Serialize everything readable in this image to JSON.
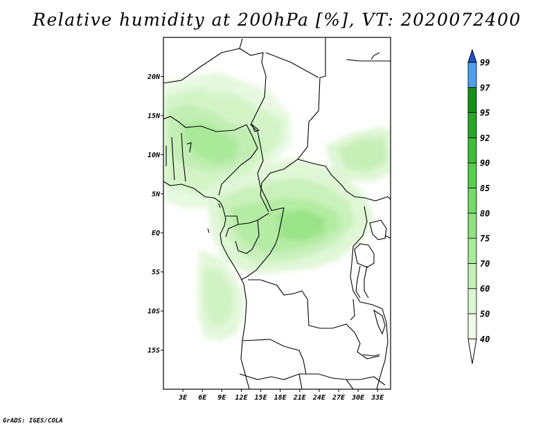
{
  "title": "Relative humidity at 200hPa [%], VT: 2020072400",
  "credit": "GrADS: IGES/COLA",
  "map": {
    "lat_labels": [
      "20N",
      "15N",
      "10N",
      "5N",
      "EQ",
      "5S",
      "10S",
      "15S"
    ],
    "lat_values": [
      20,
      15,
      10,
      5,
      0,
      -5,
      -10,
      -15
    ],
    "lon_labels": [
      "3E",
      "6E",
      "9E",
      "12E",
      "15E",
      "18E",
      "21E",
      "24E",
      "27E",
      "30E",
      "33E"
    ],
    "lon_values": [
      3,
      6,
      9,
      12,
      15,
      18,
      21,
      24,
      27,
      30,
      33
    ],
    "lon_range": [
      0,
      35
    ],
    "lat_range": [
      -20,
      25
    ]
  },
  "colorbar": {
    "levels": [
      "40",
      "50",
      "60",
      "70",
      "75",
      "80",
      "85",
      "90",
      "92",
      "95",
      "97",
      "99"
    ],
    "colors": [
      "#eefbe9",
      "#d9f7d0",
      "#c3f1b6",
      "#a8eb99",
      "#8ee37e",
      "#74db66",
      "#58cf4c",
      "#3ebe38",
      "#27a828",
      "#159118",
      "#4f9ff0",
      "#2a78e0",
      "#1f55c8"
    ],
    "lower_end_color": "#ffffff"
  }
}
